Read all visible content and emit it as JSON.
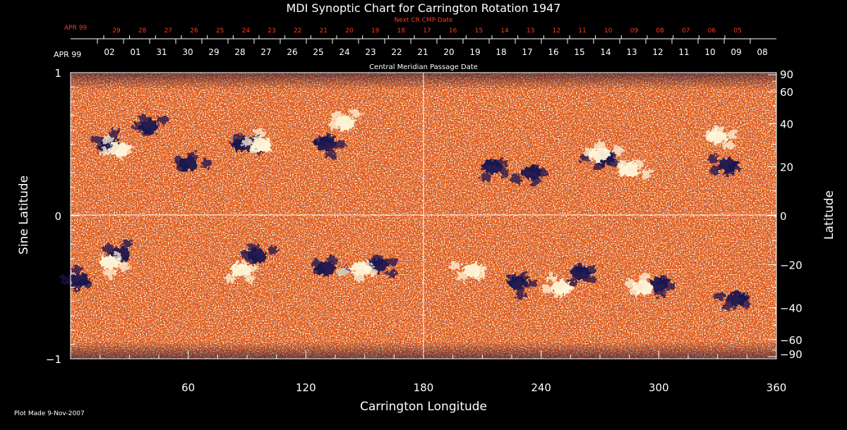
{
  "chart_data": {
    "type": "heatmap",
    "title": "MDI Synoptic Chart for Carrington Rotation 1947",
    "xlabel": "Carrington Longitude",
    "ylabel": "Sine Latitude",
    "ylabel_right": "Latitude",
    "xlim": [
      0,
      360
    ],
    "ylim": [
      -1,
      1
    ],
    "x_ticks": [
      60,
      120,
      180,
      240,
      300,
      360
    ],
    "y_ticks": [
      {
        "value": 1,
        "label": "1"
      },
      {
        "value": 0,
        "label": "0"
      },
      {
        "value": -1,
        "label": "−1"
      }
    ],
    "lat_ticks": [
      {
        "value": 90,
        "label": "90"
      },
      {
        "value": 60,
        "label": "60"
      },
      {
        "value": 40,
        "label": "40"
      },
      {
        "value": 20,
        "label": "20"
      },
      {
        "value": 0,
        "label": "0"
      },
      {
        "value": -20,
        "label": "−20"
      },
      {
        "value": -40,
        "label": "−40"
      },
      {
        "value": -60,
        "label": "−60"
      },
      {
        "value": -90,
        "label": "−90"
      }
    ],
    "cmp_axis": {
      "title": "Central Meridian Passage Date",
      "month": "APR 99",
      "labels": [
        "02",
        "01",
        "31",
        "30",
        "29",
        "28",
        "27",
        "26",
        "25",
        "24",
        "23",
        "22",
        "21",
        "20",
        "19",
        "18",
        "17",
        "16",
        "15",
        "14",
        "13",
        "12",
        "11",
        "10",
        "09",
        "08"
      ]
    },
    "next_cr_axis": {
      "title": "Next CR CMP Date",
      "month": "APR 99",
      "labels": [
        "29",
        "28",
        "27",
        "26",
        "25",
        "24",
        "23",
        "22",
        "21",
        "20",
        "19",
        "18",
        "17",
        "16",
        "15",
        "14",
        "13",
        "12",
        "11",
        "10",
        "09",
        "08",
        "07",
        "06",
        "05"
      ]
    },
    "grid": true,
    "colors": {
      "background": "#000000",
      "field_base": "#e0480c",
      "positive": "#fff6d8",
      "negative": "#1a1450",
      "next_cr_text": "#ff3b1a"
    },
    "regions": [
      {
        "lon": 20,
        "lat": 0.5,
        "polarity": "negative"
      },
      {
        "lon": 40,
        "lat": 0.62,
        "polarity": "negative"
      },
      {
        "lon": 60,
        "lat": 0.36,
        "polarity": "negative"
      },
      {
        "lon": 88,
        "lat": 0.5,
        "polarity": "negative"
      },
      {
        "lon": 130,
        "lat": 0.5,
        "polarity": "negative"
      },
      {
        "lon": 215,
        "lat": 0.34,
        "polarity": "negative"
      },
      {
        "lon": 235,
        "lat": 0.3,
        "polarity": "negative"
      },
      {
        "lon": 272,
        "lat": 0.4,
        "polarity": "negative"
      },
      {
        "lon": 335,
        "lat": 0.35,
        "polarity": "negative"
      },
      {
        "lon": 5,
        "lat": -0.45,
        "polarity": "negative"
      },
      {
        "lon": 25,
        "lat": -0.27,
        "polarity": "negative"
      },
      {
        "lon": 95,
        "lat": -0.28,
        "polarity": "negative"
      },
      {
        "lon": 130,
        "lat": -0.37,
        "polarity": "negative"
      },
      {
        "lon": 157,
        "lat": -0.35,
        "polarity": "negative"
      },
      {
        "lon": 228,
        "lat": -0.47,
        "polarity": "negative"
      },
      {
        "lon": 260,
        "lat": -0.4,
        "polarity": "negative"
      },
      {
        "lon": 300,
        "lat": -0.48,
        "polarity": "negative"
      },
      {
        "lon": 340,
        "lat": -0.58,
        "polarity": "negative"
      },
      {
        "lon": 25,
        "lat": 0.47,
        "polarity": "positive"
      },
      {
        "lon": 97,
        "lat": 0.5,
        "polarity": "positive"
      },
      {
        "lon": 140,
        "lat": 0.65,
        "polarity": "positive"
      },
      {
        "lon": 270,
        "lat": 0.43,
        "polarity": "positive"
      },
      {
        "lon": 285,
        "lat": 0.32,
        "polarity": "positive"
      },
      {
        "lon": 330,
        "lat": 0.55,
        "polarity": "positive"
      },
      {
        "lon": 20,
        "lat": -0.33,
        "polarity": "positive"
      },
      {
        "lon": 87,
        "lat": -0.38,
        "polarity": "positive"
      },
      {
        "lon": 148,
        "lat": -0.37,
        "polarity": "positive"
      },
      {
        "lon": 205,
        "lat": -0.38,
        "polarity": "positive"
      },
      {
        "lon": 250,
        "lat": -0.5,
        "polarity": "positive"
      },
      {
        "lon": 292,
        "lat": -0.5,
        "polarity": "positive"
      }
    ]
  },
  "footer": {
    "plot_made": "Plot Made  9-Nov-2007"
  }
}
